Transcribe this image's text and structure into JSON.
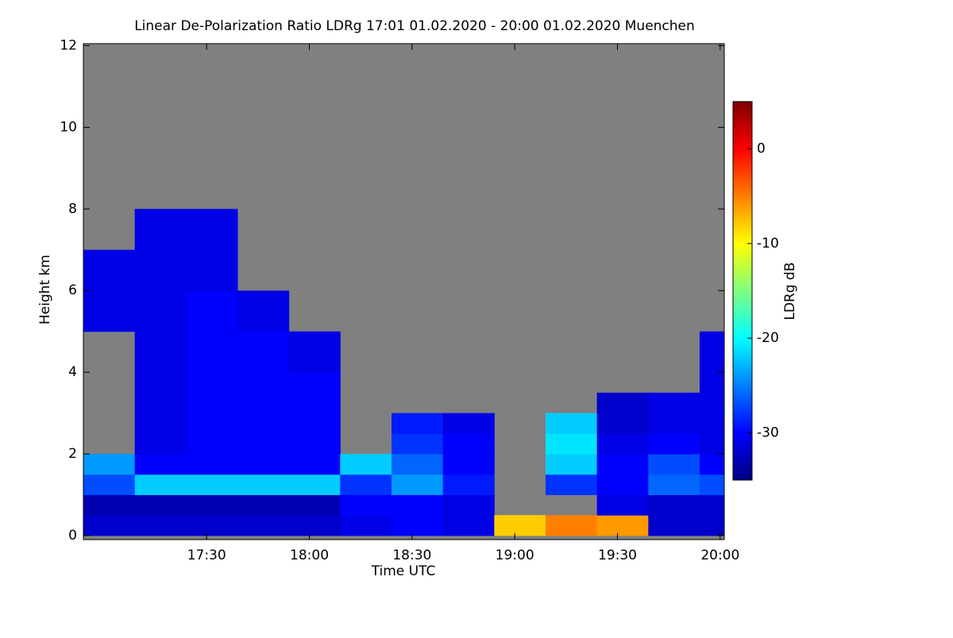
{
  "chart_data": {
    "type": "heatmap",
    "title": "Linear De-Polarization Ratio LDRg   17:01 01.02.2020 - 20:00 01.02.2020 Muenchen",
    "xlabel": "Time UTC",
    "ylabel": "Height km",
    "colorbar_label": "LDRg dB",
    "x_edges": [
      16.9,
      17.15,
      17.4,
      17.65,
      17.9,
      18.15,
      18.4,
      18.65,
      18.9,
      19.15,
      19.4,
      19.65,
      19.9,
      20.02
    ],
    "y_edges": [
      0,
      0.5,
      1,
      1.5,
      2,
      2.5,
      3,
      3.5,
      4,
      5,
      6,
      7,
      8
    ],
    "z": [
      [
        -32,
        -33,
        -27,
        -24,
        null,
        null,
        null,
        null,
        null,
        -31,
        -31,
        null
      ],
      [
        -32,
        -33,
        -22,
        -30,
        -31,
        -31,
        -31,
        -31,
        -31,
        -31,
        -31,
        -31
      ],
      [
        -32,
        -33,
        -22,
        -30,
        -30,
        -30,
        -30,
        -30,
        -30,
        -30,
        -31,
        -31
      ],
      [
        -32,
        -33,
        -22,
        -30,
        -30,
        -30,
        -30,
        -30,
        -30,
        -31,
        null,
        null
      ],
      [
        -32,
        -33,
        -22,
        -30,
        -30,
        -30,
        -30,
        -30,
        -31,
        null,
        null,
        null
      ],
      [
        -31,
        -30,
        -28,
        -22,
        null,
        null,
        null,
        null,
        null,
        null,
        null,
        null
      ],
      [
        -30,
        -30,
        -24,
        -26,
        -28,
        -29,
        null,
        null,
        null,
        null,
        null,
        null
      ],
      [
        -31,
        -31,
        -29,
        -30,
        -30,
        -31,
        null,
        null,
        null,
        null,
        null,
        null
      ],
      [
        -8,
        null,
        null,
        null,
        null,
        null,
        null,
        null,
        null,
        null,
        null,
        null
      ],
      [
        -5,
        null,
        -28,
        -22,
        -21,
        -22,
        null,
        null,
        null,
        null,
        null,
        null
      ],
      [
        -6,
        -31,
        -30,
        -30,
        -31,
        -32,
        -32,
        null,
        null,
        null,
        null,
        null
      ],
      [
        -32,
        -32,
        -26,
        -27,
        -30,
        -31,
        -31,
        null,
        null,
        null,
        null,
        null
      ],
      [
        -32,
        -32,
        -27,
        -30,
        -31,
        -31,
        -31,
        -31,
        -31,
        null,
        null,
        null
      ]
    ],
    "xlim": [
      16.9,
      20.02
    ],
    "ylim": [
      -0.1,
      12.05
    ],
    "zlim": [
      -35,
      5
    ],
    "xticks": [
      {
        "value": 17.5,
        "label": "17:30"
      },
      {
        "value": 18,
        "label": "18:00"
      },
      {
        "value": 18.5,
        "label": "18:30"
      },
      {
        "value": 19,
        "label": "19:00"
      },
      {
        "value": 19.5,
        "label": "19:30"
      },
      {
        "value": 20,
        "label": "20:00"
      }
    ],
    "yticks": [
      0,
      2,
      4,
      6,
      8,
      10,
      12
    ],
    "zticks": [
      -30,
      -20,
      -10,
      0
    ],
    "colormap": "jet",
    "nodata_color": "#808080"
  }
}
